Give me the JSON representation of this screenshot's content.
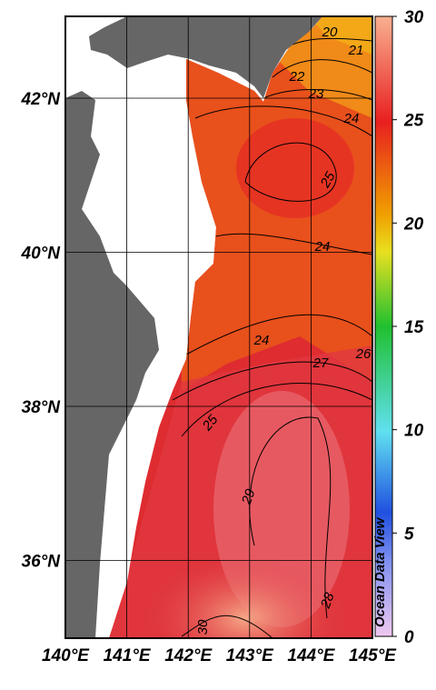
{
  "map": {
    "lon_ticks": [
      {
        "value": 140,
        "label": "140°E"
      },
      {
        "value": 141,
        "label": "141°E"
      },
      {
        "value": 142,
        "label": "142°E"
      },
      {
        "value": 143,
        "label": "143°E"
      },
      {
        "value": 144,
        "label": "144°E"
      },
      {
        "value": 145,
        "label": "145°E"
      }
    ],
    "lat_ticks": [
      {
        "value": 42,
        "label": "42°N"
      },
      {
        "value": 40,
        "label": "40°N"
      },
      {
        "value": 38,
        "label": "38°N"
      },
      {
        "value": 36,
        "label": "36°N"
      }
    ],
    "colorbar": {
      "lim": [
        0,
        30
      ],
      "ticks": [
        0,
        5,
        10,
        15,
        20,
        25,
        30
      ]
    },
    "contour_labels": [
      20,
      21,
      22,
      23,
      24,
      25,
      24,
      24,
      26,
      27,
      25,
      29,
      28,
      30
    ],
    "watermark": "Ocean Data View"
  }
}
